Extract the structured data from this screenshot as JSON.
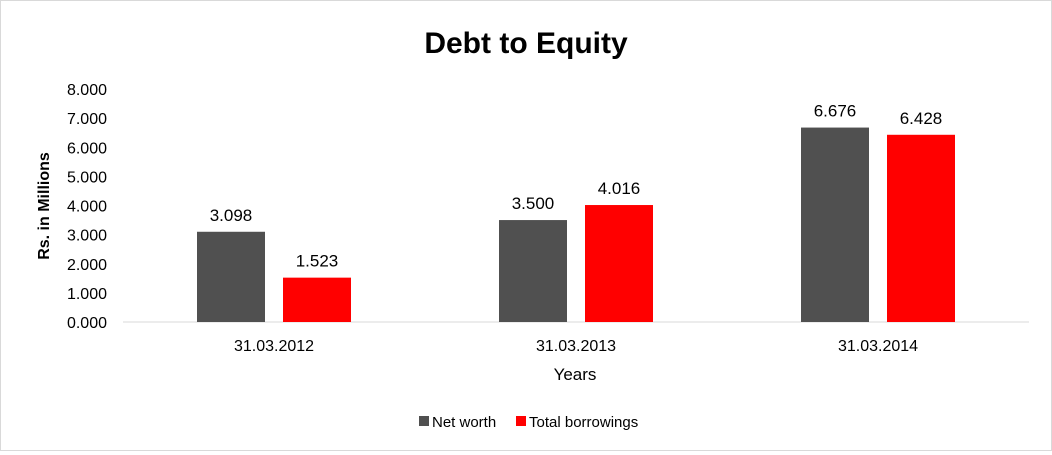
{
  "chart_data": {
    "type": "bar",
    "title": "Debt to Equity",
    "xlabel": "Years",
    "ylabel": "Rs. in Millions",
    "categories": [
      "31.03.2012",
      "31.03.2013",
      "31.03.2014"
    ],
    "series": [
      {
        "name": "Net worth",
        "color": "#505050",
        "values": [
          3.098,
          3.5,
          6.676
        ],
        "labels": [
          "3.098",
          "3.500",
          "6.676"
        ]
      },
      {
        "name": "Total borrowings",
        "color": "#ff0000",
        "values": [
          1.523,
          4.016,
          6.428
        ],
        "labels": [
          "1.523",
          "4.016",
          "6.428"
        ]
      }
    ],
    "ylim": [
      0,
      8
    ],
    "yticks": [
      "0.000",
      "1.000",
      "2.000",
      "3.000",
      "4.000",
      "5.000",
      "6.000",
      "7.000",
      "8.000"
    ],
    "grid": false,
    "legend": "bottom"
  }
}
